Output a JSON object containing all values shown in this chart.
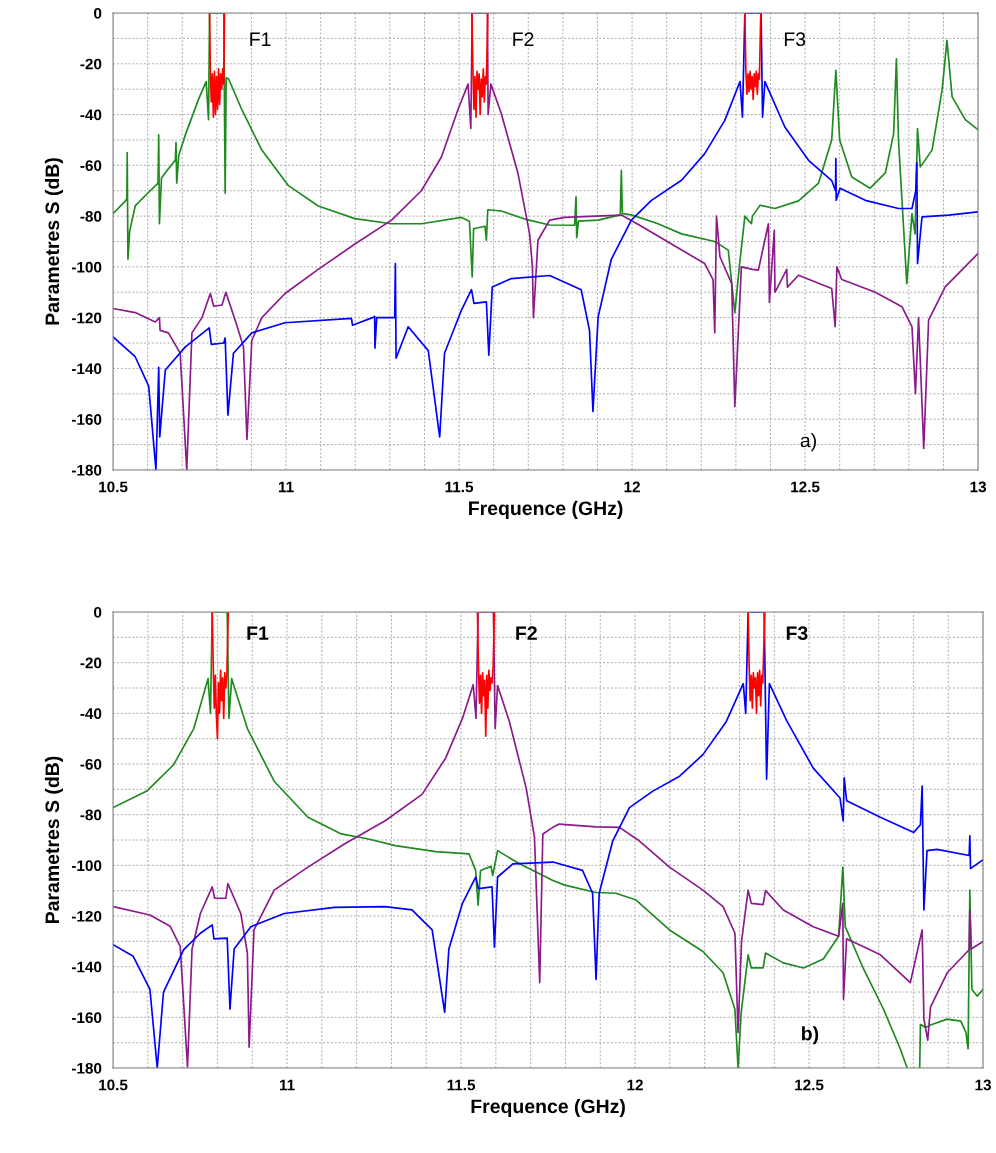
{
  "chart_data": [
    {
      "type": "line",
      "xlabel": "Frequence (GHz)",
      "ylabel": "Parametres S (dB)",
      "xlim": [
        10.5,
        13
      ],
      "ylim": [
        -180,
        0
      ],
      "grid": true,
      "xticks": [
        {
          "value": 10.5,
          "label": "10.5"
        },
        {
          "value": 10.6,
          "label": null
        },
        {
          "value": 10.7,
          "label": null
        },
        {
          "value": 10.8,
          "label": null
        },
        {
          "value": 10.9,
          "label": null
        },
        {
          "value": 11,
          "label": "11"
        },
        {
          "value": 11.1,
          "label": null
        },
        {
          "value": 11.2,
          "label": null
        },
        {
          "value": 11.3,
          "label": null
        },
        {
          "value": 11.4,
          "label": null
        },
        {
          "value": 11.5,
          "label": "11.5"
        },
        {
          "value": 11.6,
          "label": null
        },
        {
          "value": 11.7,
          "label": null
        },
        {
          "value": 11.8,
          "label": null
        },
        {
          "value": 11.9,
          "label": null
        },
        {
          "value": 12,
          "label": "12"
        },
        {
          "value": 12.1,
          "label": null
        },
        {
          "value": 12.2,
          "label": null
        },
        {
          "value": 12.3,
          "label": null
        },
        {
          "value": 12.4,
          "label": null
        },
        {
          "value": 12.5,
          "label": "12.5"
        },
        {
          "value": 12.6,
          "label": null
        },
        {
          "value": 12.7,
          "label": null
        },
        {
          "value": 12.8,
          "label": null
        },
        {
          "value": 12.9,
          "label": null
        },
        {
          "value": 13,
          "label": "13"
        }
      ],
      "yticks": [
        {
          "value": -180,
          "label": "-180"
        },
        {
          "value": -170,
          "label": null
        },
        {
          "value": -160,
          "label": "-160"
        },
        {
          "value": -150,
          "label": null
        },
        {
          "value": -140,
          "label": "-140"
        },
        {
          "value": -130,
          "label": null
        },
        {
          "value": -120,
          "label": "-120"
        },
        {
          "value": -110,
          "label": null
        },
        {
          "value": -100,
          "label": "-100"
        },
        {
          "value": -90,
          "label": null
        },
        {
          "value": -80,
          "label": "-80"
        },
        {
          "value": -70,
          "label": null
        },
        {
          "value": -60,
          "label": "-60"
        },
        {
          "value": -50,
          "label": null
        },
        {
          "value": -40,
          "label": "-40"
        },
        {
          "value": -30,
          "label": null
        },
        {
          "value": -20,
          "label": "-20"
        },
        {
          "value": -10,
          "label": null
        },
        {
          "value": 0,
          "label": "0"
        }
      ],
      "annotations": [
        "F1",
        "F2",
        "F3",
        "a)"
      ],
      "series": [
        {
          "color": "#1f8a1f",
          "x": [
            10.5,
            10.536,
            10.54,
            10.541,
            10.543,
            10.548,
            10.564,
            10.6,
            10.63,
            10.632,
            10.634,
            10.64,
            10.656,
            10.68,
            10.682,
            10.684,
            10.69,
            10.709,
            10.747,
            10.769,
            10.776,
            10.779,
            10.82,
            10.824,
            10.827,
            10.834,
            10.872,
            10.93,
            11.007,
            11.093,
            11.199,
            11.305,
            11.391,
            11.507,
            11.53,
            11.538,
            11.542,
            11.575,
            11.579,
            11.583,
            11.622,
            11.699,
            11.762,
            11.834,
            11.838,
            11.84,
            11.845,
            11.902,
            11.966,
            11.969,
            11.972,
            11.998,
            12.075,
            12.143,
            12.239,
            12.278,
            12.297,
            12.31,
            12.326,
            12.345,
            12.348,
            12.37,
            12.413,
            12.481,
            12.539,
            12.577,
            12.589,
            12.6,
            12.635,
            12.688,
            12.732,
            12.756,
            12.764,
            12.77,
            12.794,
            12.809,
            12.818,
            12.825,
            12.833,
            12.867,
            12.896,
            12.91,
            12.925,
            12.963,
            13
          ],
          "values": [
            -79,
            -74,
            -73,
            -55,
            -97,
            -86,
            -76,
            -71,
            -67,
            -48,
            -83,
            -65,
            -62,
            -58,
            -51,
            -67,
            -56,
            -48,
            -34,
            -27,
            -42,
            0,
            0,
            -71,
            -25.5,
            -26,
            -38,
            -54,
            -68,
            -76,
            -81,
            -83,
            -83,
            -80.5,
            -82,
            -104,
            -85,
            -84,
            -89.5,
            -77.5,
            -78,
            -81.5,
            -83.5,
            -83.6,
            -72.4,
            -88.5,
            -82,
            -81.6,
            -79.5,
            -62,
            -79,
            -79.5,
            -83,
            -87,
            -90,
            -93.4,
            -118,
            -100,
            -80,
            -83,
            -80,
            -75.7,
            -77,
            -74,
            -67,
            -50,
            -22.6,
            -50,
            -64.6,
            -69,
            -63,
            -47.5,
            -18,
            -50,
            -106.6,
            -79,
            -87,
            -45.5,
            -60.6,
            -54,
            -30.4,
            -10.8,
            -33,
            -42,
            -46
          ]
        },
        {
          "color": "#8b1a8b",
          "x": [
            10.5,
            10.564,
            10.622,
            10.634,
            10.636,
            10.66,
            10.694,
            10.713,
            10.728,
            10.757,
            10.781,
            10.791,
            10.815,
            10.826,
            10.853,
            10.877,
            10.887,
            10.901,
            10.93,
            10.997,
            11.093,
            11.199,
            11.305,
            11.391,
            11.449,
            11.497,
            11.526,
            11.534,
            11.538,
            11.582,
            11.584,
            11.592,
            11.622,
            11.67,
            11.704,
            11.712,
            11.715,
            11.728,
            11.762,
            11.805,
            11.969,
            12.027,
            12.114,
            12.21,
            12.234,
            12.239,
            12.244,
            12.254,
            12.288,
            12.297,
            12.316,
            12.348,
            12.365,
            12.394,
            12.397,
            12.411,
            12.413,
            12.447,
            12.449,
            12.481,
            12.577,
            12.587,
            12.592,
            12.606,
            12.703,
            12.78,
            12.809,
            12.819,
            12.828,
            12.843,
            12.857,
            12.905,
            13
          ],
          "values": [
            -116.4,
            -118,
            -121.7,
            -120,
            -125,
            -126,
            -134,
            -180,
            -126,
            -120,
            -110.5,
            -115.5,
            -115,
            -110,
            -121,
            -131.5,
            -168,
            -129,
            -120,
            -110.5,
            -101,
            -91,
            -81.6,
            -70,
            -56.7,
            -38,
            -28,
            -45.5,
            0,
            0,
            -40,
            -28,
            -39.6,
            -63,
            -87,
            -100,
            -120,
            -89.5,
            -81.6,
            -80.5,
            -79.6,
            -84,
            -91,
            -98.7,
            -105,
            -126,
            -80,
            -96,
            -106.6,
            -155,
            -100,
            -101,
            -101.3,
            -83,
            -114,
            -85.6,
            -110,
            -101,
            -108,
            -103.3,
            -108.5,
            -123.6,
            -100,
            -105,
            -110,
            -115.7,
            -123.6,
            -150,
            -120,
            -171.5,
            -121,
            -107.9,
            -94.7
          ]
        },
        {
          "color": "#0000ff",
          "x": [
            10.5,
            10.564,
            10.603,
            10.624,
            10.632,
            10.635,
            10.651,
            10.709,
            10.778,
            10.784,
            10.82,
            10.824,
            10.832,
            10.848,
            10.901,
            10.997,
            11.189,
            11.192,
            11.25,
            11.256,
            11.257,
            11.262,
            11.314,
            11.316,
            11.318,
            11.353,
            11.411,
            11.444,
            11.458,
            11.507,
            11.536,
            11.543,
            11.579,
            11.586,
            11.596,
            11.651,
            11.762,
            11.853,
            11.877,
            11.887,
            11.902,
            11.94,
            11.998,
            12.056,
            12.143,
            12.21,
            12.268,
            12.312,
            12.319,
            12.326,
            12.373,
            12.377,
            12.384,
            12.442,
            12.51,
            12.577,
            12.588,
            12.589,
            12.59,
            12.601,
            12.674,
            12.77,
            12.809,
            12.82,
            12.823,
            12.825,
            12.838,
            12.915,
            13
          ],
          "values": [
            -127.6,
            -135.4,
            -147,
            -180,
            -139.6,
            -167,
            -140.6,
            -131.5,
            -124,
            -130.5,
            -130,
            -128,
            -158.4,
            -134,
            -126,
            -122,
            -120.3,
            -123,
            -120,
            -119.5,
            -132,
            -120,
            -120,
            -98.7,
            -136,
            -123.6,
            -133,
            -167,
            -134,
            -117,
            -109,
            -114.4,
            -113.8,
            -134.8,
            -107.9,
            -104.6,
            -103.4,
            -109,
            -125,
            -157,
            -119.7,
            -97,
            -81.6,
            -73.8,
            -65.9,
            -55.4,
            -42.3,
            -27,
            -41,
            0,
            0,
            -41,
            -27,
            -45,
            -58,
            -66,
            -70,
            -57.3,
            -73.8,
            -69,
            -73.8,
            -77,
            -77,
            -70,
            -59,
            -98.7,
            -80.3,
            -79.6,
            -78.3
          ]
        },
        {
          "color": "#ff0000",
          "x": [
            10.779,
            10.781,
            10.784,
            10.787,
            10.79,
            10.793,
            10.796,
            10.799,
            10.802,
            10.805,
            10.808,
            10.811,
            10.814,
            10.817,
            10.82,
            10.822,
            11.2,
            11.537,
            11.54,
            11.543,
            11.546,
            11.549,
            11.552,
            11.555,
            11.558,
            11.561,
            11.564,
            11.567,
            11.57,
            11.573,
            11.576,
            11.579,
            11.583,
            11.9,
            12.326,
            12.329,
            12.332,
            12.335,
            12.338,
            12.341,
            12.344,
            12.347,
            12.35,
            12.353,
            12.356,
            12.359,
            12.362,
            12.365,
            12.368,
            12.372
          ],
          "values": [
            0,
            -22,
            -35,
            -24,
            -41,
            -23,
            -40,
            -25,
            -38,
            -22,
            -36,
            -24,
            -30,
            -22,
            -28,
            0,
            null,
            0,
            -22,
            -38,
            -25,
            -41,
            -23,
            -30,
            -24,
            -40,
            -26,
            -33,
            -22,
            -35,
            -25,
            -28,
            0,
            null,
            0,
            -23,
            -32,
            -24,
            -31,
            -23,
            -30,
            -25,
            -34,
            -24,
            -29,
            -23,
            -32,
            -24,
            -26,
            0
          ]
        }
      ]
    },
    {
      "type": "line",
      "xlabel": "Frequence (GHz)",
      "ylabel": "Parametres S (dB)",
      "xlim": [
        10.5,
        13
      ],
      "ylim": [
        -180,
        0
      ],
      "grid": true,
      "xticks": [
        {
          "value": 10.5,
          "label": "10.5"
        },
        {
          "value": 10.6,
          "label": null
        },
        {
          "value": 10.7,
          "label": null
        },
        {
          "value": 10.8,
          "label": null
        },
        {
          "value": 10.9,
          "label": null
        },
        {
          "value": 11,
          "label": "11"
        },
        {
          "value": 11.1,
          "label": null
        },
        {
          "value": 11.2,
          "label": null
        },
        {
          "value": 11.3,
          "label": null
        },
        {
          "value": 11.4,
          "label": null
        },
        {
          "value": 11.5,
          "label": "11.5"
        },
        {
          "value": 11.6,
          "label": null
        },
        {
          "value": 11.7,
          "label": null
        },
        {
          "value": 11.8,
          "label": null
        },
        {
          "value": 11.9,
          "label": null
        },
        {
          "value": 12,
          "label": "12"
        },
        {
          "value": 12.1,
          "label": null
        },
        {
          "value": 12.2,
          "label": null
        },
        {
          "value": 12.3,
          "label": null
        },
        {
          "value": 12.4,
          "label": null
        },
        {
          "value": 12.5,
          "label": "12.5"
        },
        {
          "value": 12.6,
          "label": null
        },
        {
          "value": 12.7,
          "label": null
        },
        {
          "value": 12.8,
          "label": null
        },
        {
          "value": 12.9,
          "label": null
        },
        {
          "value": 13,
          "label": "13"
        }
      ],
      "yticks": [
        {
          "value": -180,
          "label": "-180"
        },
        {
          "value": -170,
          "label": null
        },
        {
          "value": -160,
          "label": "-160"
        },
        {
          "value": -150,
          "label": null
        },
        {
          "value": -140,
          "label": "-140"
        },
        {
          "value": -130,
          "label": null
        },
        {
          "value": -120,
          "label": "-120"
        },
        {
          "value": -110,
          "label": null
        },
        {
          "value": -100,
          "label": "-100"
        },
        {
          "value": -90,
          "label": null
        },
        {
          "value": -80,
          "label": "-80"
        },
        {
          "value": -70,
          "label": null
        },
        {
          "value": -60,
          "label": "-60"
        },
        {
          "value": -50,
          "label": null
        },
        {
          "value": -40,
          "label": "-40"
        },
        {
          "value": -30,
          "label": null
        },
        {
          "value": -20,
          "label": "-20"
        },
        {
          "value": -10,
          "label": null
        },
        {
          "value": 0,
          "label": "0"
        }
      ],
      "annotations": [
        "F1",
        "F2",
        "F3",
        "b)"
      ],
      "series": [
        {
          "color": "#1f8a1f",
          "x": [
            10.5,
            10.597,
            10.674,
            10.732,
            10.773,
            10.78,
            10.785,
            10.828,
            10.833,
            10.841,
            10.886,
            10.963,
            11.06,
            11.156,
            11.234,
            11.311,
            11.427,
            11.523,
            11.542,
            11.549,
            11.556,
            11.586,
            11.591,
            11.605,
            11.668,
            11.764,
            11.798,
            11.888,
            11.945,
            12.003,
            12.099,
            12.195,
            12.253,
            12.287,
            12.296,
            12.305,
            12.325,
            12.334,
            12.368,
            12.375,
            12.426,
            12.484,
            12.541,
            12.585,
            12.597,
            12.604,
            12.657,
            12.714,
            12.762,
            12.782,
            12.8,
            12.818,
            12.82,
            12.835,
            12.849,
            12.897,
            12.936,
            12.951,
            12.957,
            12.962,
            12.968,
            12.983,
            13
          ],
          "values": [
            -77.2,
            -70.7,
            -60.3,
            -46,
            -26.3,
            -40,
            0,
            0,
            -42,
            -26.3,
            -46,
            -66.8,
            -81,
            -87.6,
            -89.6,
            -92.2,
            -94.6,
            -95.5,
            -102,
            -115.7,
            -102,
            -100.4,
            -104,
            -94.2,
            -99.4,
            -106,
            -107.8,
            -110.7,
            -111,
            -113.7,
            -125.5,
            -134,
            -142.4,
            -156.8,
            -180,
            -158,
            -135.3,
            -140.5,
            -140.5,
            -134.6,
            -138.5,
            -140.5,
            -137,
            -128,
            -100.7,
            -124.2,
            -141,
            -156.8,
            -172.4,
            -180,
            null,
            -180,
            -162.8,
            -164,
            -163,
            -160.7,
            -161.5,
            -166,
            -172.4,
            -109.8,
            -149,
            -151.6,
            -149
          ]
        },
        {
          "color": "#8b1a8b",
          "x": [
            10.5,
            10.606,
            10.664,
            10.693,
            10.714,
            10.727,
            10.751,
            10.785,
            10.792,
            10.824,
            10.83,
            10.867,
            10.886,
            10.891,
            10.905,
            10.963,
            11.06,
            11.166,
            11.282,
            11.388,
            11.456,
            11.504,
            11.535,
            11.543,
            11.549,
            11.593,
            11.598,
            11.605,
            11.639,
            11.687,
            11.711,
            11.726,
            11.735,
            11.764,
            11.782,
            11.888,
            11.955,
            12.012,
            12.099,
            12.195,
            12.253,
            12.287,
            12.296,
            12.306,
            12.325,
            12.334,
            12.368,
            12.375,
            12.426,
            12.512,
            12.585,
            12.597,
            12.599,
            12.608,
            12.705,
            12.791,
            12.825,
            12.83,
            12.841,
            12.849,
            12.897,
            12.96,
            12.962,
            12.966,
            13
          ],
          "values": [
            -116.3,
            -119.6,
            -124,
            -132,
            -179.6,
            -133,
            -119,
            -108.5,
            -113,
            -113,
            -107.2,
            -119,
            -134.6,
            -171.8,
            -125.5,
            -109.8,
            -100.7,
            -91.5,
            -82.4,
            -72,
            -57.6,
            -42,
            -28.7,
            -42,
            0,
            0,
            -46,
            -29,
            -43.3,
            -69.4,
            -88.9,
            -146.3,
            -87.6,
            -85,
            -83.7,
            -84.8,
            -85,
            -90.3,
            -100.7,
            -109.8,
            -116.3,
            -126.8,
            -166,
            -130,
            -109.8,
            -115,
            -115.5,
            -110,
            -117.6,
            -124.2,
            -128,
            -115,
            -152.9,
            -129,
            -135.3,
            -146.3,
            -125.5,
            -160.7,
            -169,
            -156,
            -142.4,
            -133.3,
            -117.6,
            -133,
            -130
          ]
        },
        {
          "color": "#0000ff",
          "x": [
            10.5,
            10.558,
            10.606,
            10.627,
            10.645,
            10.703,
            10.751,
            10.785,
            10.79,
            10.828,
            10.836,
            10.848,
            10.896,
            10.992,
            11.137,
            11.282,
            11.359,
            11.417,
            11.453,
            11.465,
            11.504,
            11.542,
            11.55,
            11.589,
            11.596,
            11.605,
            11.649,
            11.764,
            11.849,
            11.878,
            11.888,
            11.897,
            11.936,
            11.984,
            12.051,
            12.128,
            12.195,
            12.262,
            12.311,
            12.318,
            12.325,
            12.371,
            12.378,
            12.386,
            12.436,
            12.512,
            12.589,
            12.598,
            12.601,
            12.608,
            12.705,
            12.801,
            12.82,
            12.825,
            12.83,
            12.839,
            12.868,
            12.96,
            12.962,
            12.964,
            13
          ],
          "values": [
            -131.3,
            -135.9,
            -149,
            -180,
            -150,
            -133.3,
            -126.8,
            -123.5,
            -129,
            -128.7,
            -156.8,
            -133,
            -124.2,
            -119,
            -116.6,
            -116.3,
            -117.6,
            -125.5,
            -158,
            -133,
            -115,
            -104.6,
            -109.2,
            -108.5,
            -132.3,
            -104.6,
            -99.4,
            -98.7,
            -102,
            -111,
            -145,
            -111,
            -90.3,
            -77.2,
            -70.7,
            -64.8,
            -56.3,
            -43.3,
            -28.3,
            -40,
            0,
            0,
            -66,
            -28.3,
            -43,
            -61.6,
            -73.4,
            -82.4,
            -65.5,
            -74.5,
            -81,
            -87,
            -84,
            -68.7,
            -117.6,
            -94.2,
            -93.7,
            -96.1,
            -88.3,
            -101.3,
            -97.8
          ]
        },
        {
          "color": "#ff0000",
          "x": [
            10.785,
            10.788,
            10.791,
            10.794,
            10.797,
            10.8,
            10.803,
            10.806,
            10.809,
            10.812,
            10.815,
            10.818,
            10.821,
            10.824,
            10.827,
            10.831,
            11.2,
            11.547,
            11.55,
            11.553,
            11.556,
            11.559,
            11.562,
            11.565,
            11.568,
            11.571,
            11.574,
            11.577,
            11.58,
            11.583,
            11.586,
            11.589,
            11.592,
            11.596,
            11.9,
            12.325,
            12.328,
            12.331,
            12.334,
            12.337,
            12.34,
            12.343,
            12.346,
            12.349,
            12.352,
            12.355,
            12.358,
            12.361,
            12.364,
            12.367,
            12.373
          ],
          "values": [
            0,
            -22,
            -38,
            -25,
            -41,
            -50,
            -28,
            -40,
            -23,
            -35,
            -26,
            -42,
            -24,
            -30,
            -25,
            0,
            null,
            0,
            -21,
            -36,
            -25,
            -40,
            -24,
            -33,
            -27,
            -49,
            -25,
            -38,
            -23,
            -31,
            -26,
            -28,
            -22,
            0,
            null,
            0,
            -22,
            -35,
            -25,
            -38,
            -24,
            -30,
            -26,
            -40,
            -24,
            -33,
            -23,
            -37,
            -25,
            -28,
            0
          ]
        }
      ]
    }
  ]
}
